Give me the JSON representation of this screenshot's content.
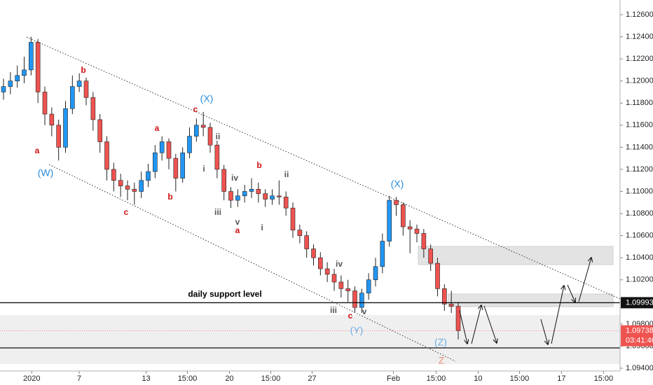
{
  "chart_data": {
    "type": "candlestick",
    "up_color": "#2196f3",
    "down_color": "#ef5350",
    "xlim": [
      0,
      90
    ],
    "xticks": [
      {
        "value": 4.6,
        "label": "2020"
      },
      {
        "value": 11.5,
        "label": "7"
      },
      {
        "value": 21.2,
        "label": "13"
      },
      {
        "value": 27.2,
        "label": "15:00"
      },
      {
        "value": 33.3,
        "label": "20"
      },
      {
        "value": 39.3,
        "label": "15:00"
      },
      {
        "value": 45.3,
        "label": "27"
      },
      {
        "value": 57.1,
        "label": "Feb"
      },
      {
        "value": 63.3,
        "label": "15:00"
      },
      {
        "value": 69.4,
        "label": "10"
      },
      {
        "value": 75.4,
        "label": "15:00"
      },
      {
        "value": 81.5,
        "label": "17"
      },
      {
        "value": 87.6,
        "label": "15:00"
      }
    ],
    "ylim": [
      1.09248,
      1.12733
    ],
    "yticks": [
      {
        "value": 1.126,
        "label": "1.12600"
      },
      {
        "value": 1.124,
        "label": "1.12400"
      },
      {
        "value": 1.122,
        "label": "1.12200"
      },
      {
        "value": 1.12,
        "label": "1.12000"
      },
      {
        "value": 1.118,
        "label": "1.11800"
      },
      {
        "value": 1.116,
        "label": "1.11600"
      },
      {
        "value": 1.114,
        "label": "1.11400"
      },
      {
        "value": 1.112,
        "label": "1.11200"
      },
      {
        "value": 1.11,
        "label": "1.11000"
      },
      {
        "value": 1.108,
        "label": "1.10800"
      },
      {
        "value": 1.106,
        "label": "1.10600"
      },
      {
        "value": 1.104,
        "label": "1.10400"
      },
      {
        "value": 1.102,
        "label": "1.10200"
      },
      {
        "value": 1.098,
        "label": "1.09800"
      },
      {
        "value": 1.096,
        "label": "1.09600"
      },
      {
        "value": 1.094,
        "label": "1.09400"
      }
    ],
    "open": [
      1.119,
      1.1195,
      1.12,
      1.1205,
      1.121,
      1.1235,
      1.119,
      1.117,
      1.116,
      1.114,
      1.1175,
      1.1195,
      1.12,
      1.1185,
      1.1165,
      1.1145,
      1.112,
      1.111,
      1.1105,
      1.1102,
      1.11,
      1.111,
      1.1118,
      1.1135,
      1.1145,
      1.113,
      1.1112,
      1.1135,
      1.115,
      1.116,
      1.1158,
      1.1142,
      1.112,
      1.11,
      1.1092,
      1.1096,
      1.11,
      1.1102,
      1.1098,
      1.1093,
      1.1096,
      1.1095,
      1.1085,
      1.1065,
      1.106,
      1.1048,
      1.104,
      1.103,
      1.1025,
      1.1018,
      1.1012,
      1.101,
      1.0995,
      1.1008,
      1.102,
      1.1032,
      1.1055,
      1.1092,
      1.1088,
      1.1068,
      1.1066,
      1.1062,
      1.1048,
      1.1035,
      1.1012,
      1.0998,
      1.0996
    ],
    "high": [
      1.1202,
      1.1208,
      1.1214,
      1.1222,
      1.124,
      1.1238,
      1.1195,
      1.1176,
      1.1165,
      1.1182,
      1.1205,
      1.1207,
      1.1203,
      1.119,
      1.117,
      1.115,
      1.1126,
      1.1116,
      1.111,
      1.1108,
      1.1118,
      1.1125,
      1.1142,
      1.115,
      1.1148,
      1.1134,
      1.114,
      1.1158,
      1.1166,
      1.1172,
      1.1162,
      1.1146,
      1.1124,
      1.1104,
      1.1102,
      1.1106,
      1.1112,
      1.1108,
      1.1102,
      1.1102,
      1.111,
      1.11,
      1.109,
      1.107,
      1.1064,
      1.1052,
      1.1045,
      1.1036,
      1.103,
      1.1024,
      1.102,
      1.1014,
      1.1012,
      1.1026,
      1.104,
      1.1062,
      1.1096,
      1.1095,
      1.109,
      1.1074,
      1.107,
      1.1066,
      1.1052,
      1.104,
      1.1016,
      1.101,
      1.1
    ],
    "low": [
      1.1183,
      1.1188,
      1.1194,
      1.1198,
      1.1205,
      1.118,
      1.116,
      1.115,
      1.1128,
      1.1135,
      1.117,
      1.119,
      1.1178,
      1.1155,
      1.1135,
      1.111,
      1.11,
      1.1095,
      1.1092,
      1.1088,
      1.1094,
      1.1104,
      1.1112,
      1.1128,
      1.112,
      1.11,
      1.1108,
      1.113,
      1.1145,
      1.115,
      1.1135,
      1.1112,
      1.1092,
      1.1085,
      1.1086,
      1.109,
      1.1094,
      1.109,
      1.1086,
      1.1088,
      1.1088,
      1.1078,
      1.1058,
      1.1053,
      1.104,
      1.1033,
      1.1024,
      1.1018,
      1.101,
      1.1004,
      1.1,
      1.099,
      1.099,
      1.1002,
      1.1014,
      1.1026,
      1.105,
      1.1078,
      1.106,
      1.1044,
      1.1054,
      1.104,
      1.1028,
      1.1005,
      1.0992,
      1.099,
      1.0966
    ],
    "close": [
      1.1195,
      1.12,
      1.1205,
      1.121,
      1.1235,
      1.119,
      1.117,
      1.116,
      1.114,
      1.1175,
      1.1195,
      1.12,
      1.1185,
      1.1165,
      1.1145,
      1.112,
      1.111,
      1.1105,
      1.1102,
      1.11,
      1.111,
      1.1118,
      1.1135,
      1.1145,
      1.113,
      1.1112,
      1.1135,
      1.115,
      1.116,
      1.1158,
      1.1142,
      1.112,
      1.11,
      1.1092,
      1.1096,
      1.11,
      1.1102,
      1.1098,
      1.1093,
      1.1096,
      1.1095,
      1.1085,
      1.1065,
      1.106,
      1.1048,
      1.104,
      1.103,
      1.1025,
      1.1018,
      1.1012,
      1.101,
      1.0995,
      1.1008,
      1.102,
      1.1032,
      1.1055,
      1.1092,
      1.1088,
      1.1068,
      1.1066,
      1.1062,
      1.1048,
      1.1035,
      1.1012,
      1.0998,
      1.0996,
      1.0974
    ],
    "support_level": {
      "value": 1.09993,
      "label": "1.09993"
    },
    "support_text": "daily support level",
    "last_price": {
      "value": 1.09738,
      "label": "1.09738"
    },
    "countdown": "03:41:46",
    "annotations": [
      "b",
      "(X)",
      "c",
      "a",
      "ii",
      "a",
      "i",
      "b",
      "ii",
      "(W)",
      "iv",
      "(X)",
      "b",
      "c",
      "iii",
      "v",
      "a",
      "i",
      "iv",
      "iii",
      "v",
      "c",
      "(Y)",
      "(Z)",
      "Z"
    ]
  }
}
